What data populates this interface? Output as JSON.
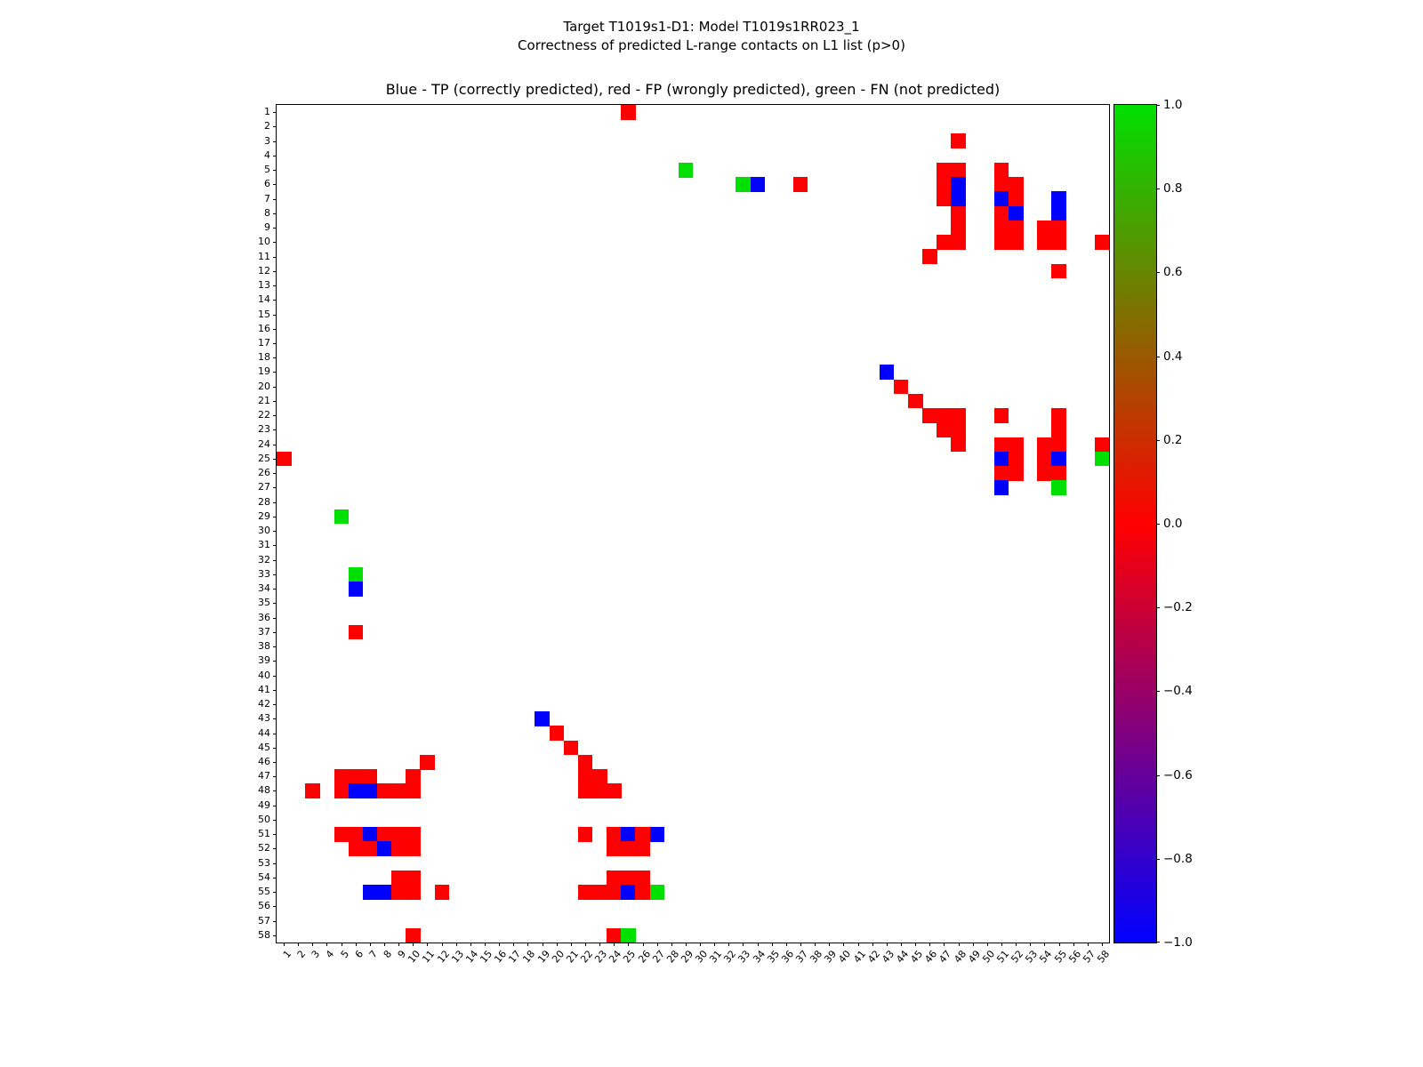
{
  "figure": {
    "suptitle_line1": "Target T1019s1-D1: Model T1019s1RR023_1",
    "suptitle_line2": "Correctness of predicted L-range contacts on L1 list (p>0)",
    "axes_title": "Blue - TP (correctly predicted), red - FP (wrongly predicted), green - FN (not predicted)"
  },
  "chart_data": {
    "type": "heatmap",
    "title": "Blue - TP (correctly predicted), red - FP (wrongly predicted), green - FN (not predicted)",
    "xlabel": "",
    "ylabel": "",
    "n": 58,
    "symmetric": true,
    "grid": false,
    "tick_labels": [
      "1",
      "2",
      "3",
      "4",
      "5",
      "6",
      "7",
      "8",
      "9",
      "10",
      "11",
      "12",
      "13",
      "14",
      "15",
      "16",
      "17",
      "18",
      "19",
      "20",
      "21",
      "22",
      "23",
      "24",
      "25",
      "26",
      "27",
      "28",
      "29",
      "30",
      "31",
      "32",
      "33",
      "34",
      "35",
      "36",
      "37",
      "38",
      "39",
      "40",
      "41",
      "42",
      "43",
      "44",
      "45",
      "46",
      "47",
      "48",
      "49",
      "50",
      "51",
      "52",
      "53",
      "54",
      "55",
      "56",
      "57",
      "58"
    ],
    "legend": {
      "TP": "correctly predicted",
      "FP": "wrongly predicted",
      "FN": "not predicted"
    },
    "colors": {
      "TP": "#0000ff",
      "FP": "#ff0000",
      "FN": "#00e000"
    },
    "colorbar": {
      "min": -1.0,
      "max": 1.0,
      "tick_values": [
        1.0,
        0.8,
        0.6,
        0.4,
        0.2,
        0.0,
        -0.2,
        -0.4,
        -0.6,
        -0.8,
        -1.0
      ],
      "tick_labels": [
        "1.0",
        "0.8",
        "0.6",
        "0.4",
        "0.2",
        "0.0",
        "−0.2",
        "−0.4",
        "−0.6",
        "−0.8",
        "−1.0"
      ],
      "colormap": "blue-red-green"
    },
    "cells": [
      {
        "i": 1,
        "j": 25,
        "t": "FP"
      },
      {
        "i": 3,
        "j": 48,
        "t": "FP"
      },
      {
        "i": 5,
        "j": 29,
        "t": "FN"
      },
      {
        "i": 5,
        "j": 47,
        "t": "FP"
      },
      {
        "i": 5,
        "j": 48,
        "t": "FP"
      },
      {
        "i": 5,
        "j": 51,
        "t": "FP"
      },
      {
        "i": 6,
        "j": 33,
        "t": "FN"
      },
      {
        "i": 6,
        "j": 34,
        "t": "TP"
      },
      {
        "i": 6,
        "j": 37,
        "t": "FP"
      },
      {
        "i": 6,
        "j": 47,
        "t": "FP"
      },
      {
        "i": 6,
        "j": 48,
        "t": "TP"
      },
      {
        "i": 6,
        "j": 51,
        "t": "FP"
      },
      {
        "i": 6,
        "j": 52,
        "t": "FP"
      },
      {
        "i": 7,
        "j": 47,
        "t": "FP"
      },
      {
        "i": 7,
        "j": 48,
        "t": "TP"
      },
      {
        "i": 7,
        "j": 51,
        "t": "TP"
      },
      {
        "i": 7,
        "j": 52,
        "t": "FP"
      },
      {
        "i": 7,
        "j": 55,
        "t": "TP"
      },
      {
        "i": 8,
        "j": 48,
        "t": "FP"
      },
      {
        "i": 8,
        "j": 51,
        "t": "FP"
      },
      {
        "i": 8,
        "j": 52,
        "t": "TP"
      },
      {
        "i": 8,
        "j": 55,
        "t": "TP"
      },
      {
        "i": 9,
        "j": 48,
        "t": "FP"
      },
      {
        "i": 9,
        "j": 51,
        "t": "FP"
      },
      {
        "i": 9,
        "j": 52,
        "t": "FP"
      },
      {
        "i": 9,
        "j": 54,
        "t": "FP"
      },
      {
        "i": 9,
        "j": 55,
        "t": "FP"
      },
      {
        "i": 10,
        "j": 47,
        "t": "FP"
      },
      {
        "i": 10,
        "j": 48,
        "t": "FP"
      },
      {
        "i": 10,
        "j": 51,
        "t": "FP"
      },
      {
        "i": 10,
        "j": 52,
        "t": "FP"
      },
      {
        "i": 10,
        "j": 54,
        "t": "FP"
      },
      {
        "i": 10,
        "j": 55,
        "t": "FP"
      },
      {
        "i": 10,
        "j": 58,
        "t": "FP"
      },
      {
        "i": 11,
        "j": 46,
        "t": "FP"
      },
      {
        "i": 12,
        "j": 55,
        "t": "FP"
      },
      {
        "i": 19,
        "j": 43,
        "t": "TP"
      },
      {
        "i": 20,
        "j": 44,
        "t": "FP"
      },
      {
        "i": 21,
        "j": 45,
        "t": "FP"
      },
      {
        "i": 22,
        "j": 46,
        "t": "FP"
      },
      {
        "i": 22,
        "j": 47,
        "t": "FP"
      },
      {
        "i": 22,
        "j": 48,
        "t": "FP"
      },
      {
        "i": 22,
        "j": 51,
        "t": "FP"
      },
      {
        "i": 22,
        "j": 55,
        "t": "FP"
      },
      {
        "i": 23,
        "j": 47,
        "t": "FP"
      },
      {
        "i": 23,
        "j": 48,
        "t": "FP"
      },
      {
        "i": 23,
        "j": 55,
        "t": "FP"
      },
      {
        "i": 24,
        "j": 48,
        "t": "FP"
      },
      {
        "i": 24,
        "j": 51,
        "t": "FP"
      },
      {
        "i": 24,
        "j": 52,
        "t": "FP"
      },
      {
        "i": 24,
        "j": 54,
        "t": "FP"
      },
      {
        "i": 24,
        "j": 55,
        "t": "FP"
      },
      {
        "i": 24,
        "j": 58,
        "t": "FP"
      },
      {
        "i": 25,
        "j": 51,
        "t": "TP"
      },
      {
        "i": 25,
        "j": 52,
        "t": "FP"
      },
      {
        "i": 25,
        "j": 54,
        "t": "FP"
      },
      {
        "i": 25,
        "j": 55,
        "t": "TP"
      },
      {
        "i": 25,
        "j": 58,
        "t": "FN"
      },
      {
        "i": 26,
        "j": 51,
        "t": "FP"
      },
      {
        "i": 26,
        "j": 52,
        "t": "FP"
      },
      {
        "i": 26,
        "j": 54,
        "t": "FP"
      },
      {
        "i": 26,
        "j": 55,
        "t": "FP"
      },
      {
        "i": 27,
        "j": 51,
        "t": "TP"
      },
      {
        "i": 27,
        "j": 55,
        "t": "FN"
      }
    ]
  }
}
